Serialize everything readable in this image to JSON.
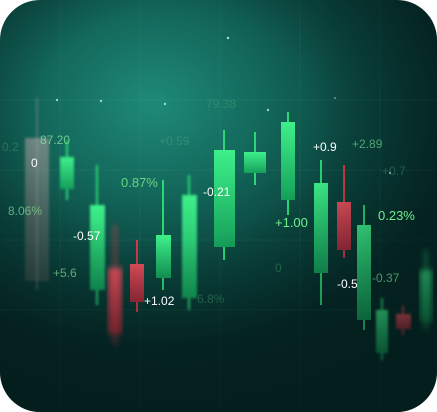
{
  "labels": {
    "l_0": "0",
    "l_87_20": "87.20",
    "l_0_2": "0.2",
    "l_8_06": "8.06%",
    "l_5_6": "+5.6",
    "l_0_57": "-0.57",
    "l_0_87": "0.87%",
    "l_0_59": "+0.59",
    "l_79_38": "79.38",
    "l_1_02": "+1.02",
    "l_bottom_pct": "6.8%",
    "l_0_21": "-0.21",
    "l_1_00": "+1.00",
    "l_0_mid": "0",
    "l_0_9": "+0.9",
    "l_2_89": "+2.89",
    "l_0_7": "+0.7",
    "l_0_23": "0.23%",
    "l_0_5": "-0.5",
    "l_0_37": "-0.37"
  },
  "colors": {
    "up": "#2bd873",
    "down": "#d63a4a",
    "bg_light": "#1f8a78",
    "bg_dark": "#062a28"
  }
}
